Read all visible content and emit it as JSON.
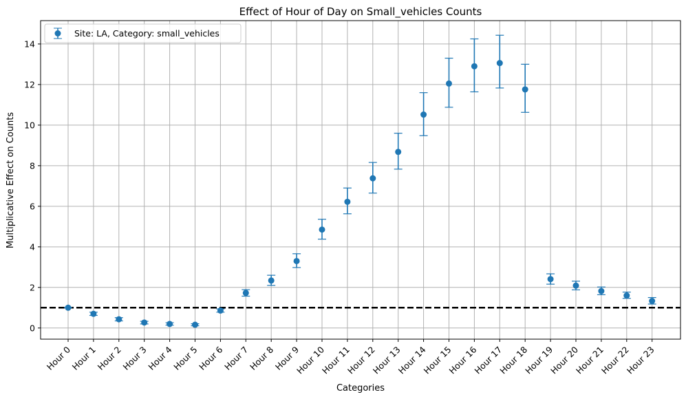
{
  "chart_data": {
    "type": "scatter",
    "title": "Effect of Hour of Day on Small_vehicles Counts",
    "xlabel": "Categories",
    "ylabel": "Multiplicative Effect on Counts",
    "ylim": [
      -0.55,
      15.15
    ],
    "yticks": [
      0,
      2,
      4,
      6,
      8,
      10,
      12,
      14
    ],
    "grid": true,
    "legend_position": "top-left",
    "reference_line": {
      "y": 1,
      "style": "dashed",
      "color": "#000000"
    },
    "color": "#1f77b4",
    "categories": [
      "Hour 0",
      "Hour 1",
      "Hour 2",
      "Hour 3",
      "Hour 4",
      "Hour 5",
      "Hour 6",
      "Hour 7",
      "Hour 8",
      "Hour 9",
      "Hour 10",
      "Hour 11",
      "Hour 12",
      "Hour 13",
      "Hour 14",
      "Hour 15",
      "Hour 16",
      "Hour 17",
      "Hour 18",
      "Hour 19",
      "Hour 20",
      "Hour 21",
      "Hour 22",
      "Hour 23"
    ],
    "series": [
      {
        "name": "Site: LA, Category: small_vehicles",
        "values": [
          1.0,
          0.7,
          0.43,
          0.27,
          0.2,
          0.16,
          0.86,
          1.73,
          2.34,
          3.3,
          4.85,
          6.22,
          7.38,
          8.68,
          10.52,
          12.05,
          12.9,
          13.06,
          11.76,
          2.41,
          2.09,
          1.82,
          1.6,
          1.33
        ],
        "lower": [
          1.0,
          0.62,
          0.35,
          0.2,
          0.14,
          0.11,
          0.78,
          1.57,
          2.1,
          2.98,
          4.38,
          5.63,
          6.65,
          7.83,
          9.48,
          10.88,
          11.64,
          11.83,
          10.63,
          2.16,
          1.88,
          1.64,
          1.46,
          1.18
        ],
        "upper": [
          1.0,
          0.78,
          0.51,
          0.33,
          0.26,
          0.21,
          0.94,
          1.89,
          2.6,
          3.66,
          5.36,
          6.9,
          8.16,
          9.6,
          11.6,
          13.3,
          14.25,
          14.43,
          13.0,
          2.67,
          2.31,
          2.02,
          1.77,
          1.5
        ]
      }
    ]
  }
}
